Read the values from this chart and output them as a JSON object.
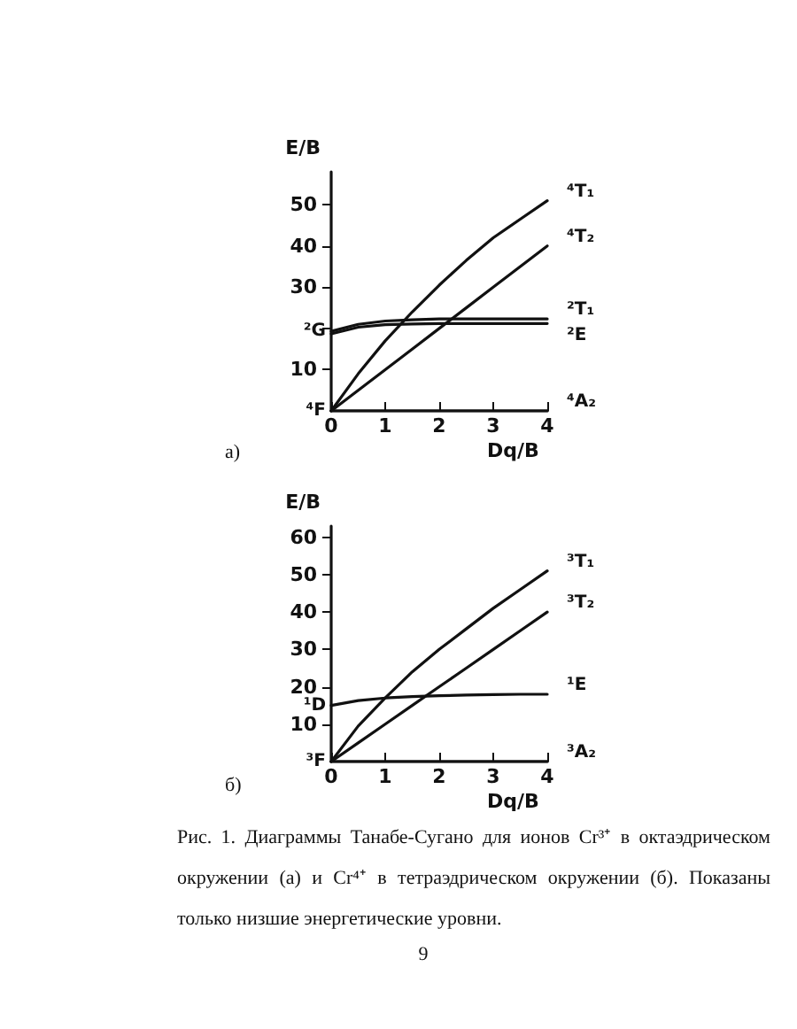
{
  "chart_data": [
    {
      "type": "line",
      "title": "а)",
      "xlabel": "Dq/B",
      "ylabel": "E/B",
      "x": [
        0,
        0.5,
        1,
        1.5,
        2,
        2.5,
        3,
        3.5,
        4
      ],
      "xlim": [
        0,
        4
      ],
      "ylim": [
        0,
        58
      ],
      "xticks": [
        0,
        1,
        2,
        3,
        4
      ],
      "yticks": [
        10,
        {
          "value": 20,
          "label": null
        },
        30,
        40,
        50
      ],
      "grid": false,
      "marker": "none",
      "line_style": "solid",
      "series": [
        {
          "name": "⁴T₁",
          "color": "#111111",
          "values": [
            0,
            9,
            17,
            24,
            30.5,
            36.5,
            42,
            46.5,
            51
          ]
        },
        {
          "name": "⁴T₂",
          "color": "#111111",
          "values": [
            0,
            5,
            10,
            15,
            20,
            25,
            30,
            35,
            40
          ]
        },
        {
          "name": "²T₁",
          "color": "#111111",
          "values": [
            19.3,
            21,
            21.8,
            22.1,
            22.3,
            22.3,
            22.3,
            22.3,
            22.3
          ]
        },
        {
          "name": "²E",
          "color": "#111111",
          "values": [
            18.7,
            20.3,
            20.9,
            21.1,
            21.2,
            21.2,
            21.2,
            21.2,
            21.2
          ]
        },
        {
          "name": "⁴A₂",
          "color": "#111111",
          "values": [
            0,
            0,
            0,
            0,
            0,
            0,
            0,
            0,
            0
          ]
        }
      ],
      "annotations": [
        "²G",
        "⁴F"
      ]
    },
    {
      "type": "line",
      "title": "б)",
      "xlabel": "Dq/B",
      "ylabel": "E/B",
      "x": [
        0,
        0.5,
        1,
        1.5,
        2,
        2.5,
        3,
        3.5,
        4
      ],
      "xlim": [
        0,
        4
      ],
      "ylim": [
        0,
        63
      ],
      "xticks": [
        0,
        1,
        2,
        3,
        4
      ],
      "yticks": [
        10,
        20,
        30,
        40,
        50,
        60
      ],
      "grid": false,
      "marker": "none",
      "line_style": "solid",
      "series": [
        {
          "name": "³T₁",
          "color": "#111111",
          "values": [
            0,
            9.5,
            17,
            24,
            30,
            35.5,
            41,
            46,
            51
          ]
        },
        {
          "name": "³T₂",
          "color": "#111111",
          "values": [
            0,
            5,
            10,
            15,
            20,
            25,
            30,
            35,
            40
          ]
        },
        {
          "name": "¹E",
          "color": "#111111",
          "values": [
            15,
            16.3,
            17,
            17.4,
            17.6,
            17.8,
            17.9,
            18,
            18
          ]
        },
        {
          "name": "³A₂",
          "color": "#111111",
          "values": [
            0,
            0,
            0,
            0,
            0,
            0,
            0,
            0,
            0
          ]
        }
      ],
      "annotations": [
        "¹D",
        "³F",
        "Рис. 1. Диаграммы Танабе-Сугано для ионов Cr³⁺ в октаэдрическом окружении (а) и Cr⁴⁺ в тетраэдрическом окружении (б). Показаны только низшие энергетические уровни.",
        "9"
      ]
    }
  ]
}
